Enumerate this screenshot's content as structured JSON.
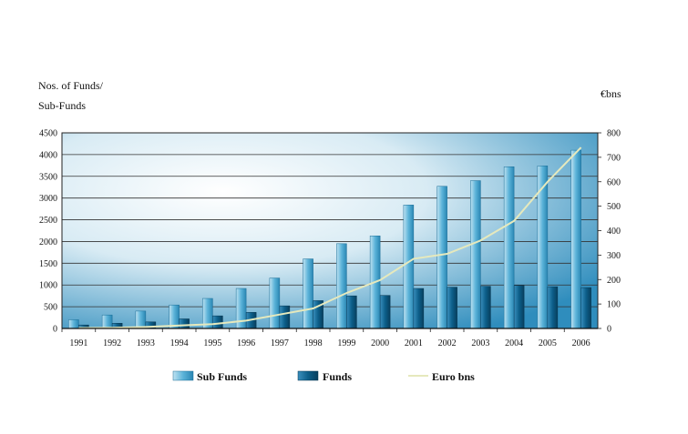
{
  "chart_data": {
    "type": "bar",
    "left_axis_title_line1": "Nos. of Funds/",
    "left_axis_title_line2": "Sub-Funds",
    "right_axis_title": "€bns",
    "categories": [
      "1991",
      "1992",
      "1993",
      "1994",
      "1995",
      "1996",
      "1997",
      "1998",
      "1999",
      "2000",
      "2001",
      "2002",
      "2003",
      "2004",
      "2005",
      "2006"
    ],
    "series": [
      {
        "name": "Sub Funds",
        "type": "bar",
        "axis": "left",
        "color": "#4fa8d0",
        "values": [
          200,
          310,
          400,
          540,
          690,
          920,
          1160,
          1600,
          1950,
          2130,
          2840,
          3270,
          3400,
          3720,
          3740,
          4100
        ]
      },
      {
        "name": "Funds",
        "type": "bar",
        "axis": "left",
        "color": "#0d5f8a",
        "values": [
          80,
          120,
          150,
          220,
          290,
          370,
          520,
          640,
          750,
          760,
          920,
          950,
          970,
          990,
          960,
          940
        ]
      },
      {
        "name": "Euro bns",
        "type": "line",
        "axis": "right",
        "color": "#e6e9bd",
        "values": [
          2,
          3,
          6,
          12,
          18,
          32,
          57,
          82,
          145,
          198,
          285,
          305,
          360,
          440,
          600,
          740
        ]
      }
    ],
    "left_ylim": [
      0,
      4500
    ],
    "left_ticks": [
      "0",
      "500",
      "1000",
      "1500",
      "2000",
      "2500",
      "3000",
      "3500",
      "4000",
      "4500"
    ],
    "right_ylim": [
      0,
      800
    ],
    "right_ticks": [
      "0",
      "100",
      "200",
      "300",
      "400",
      "500",
      "600",
      "700",
      "800"
    ],
    "grid": true,
    "legend_position": "bottom"
  }
}
